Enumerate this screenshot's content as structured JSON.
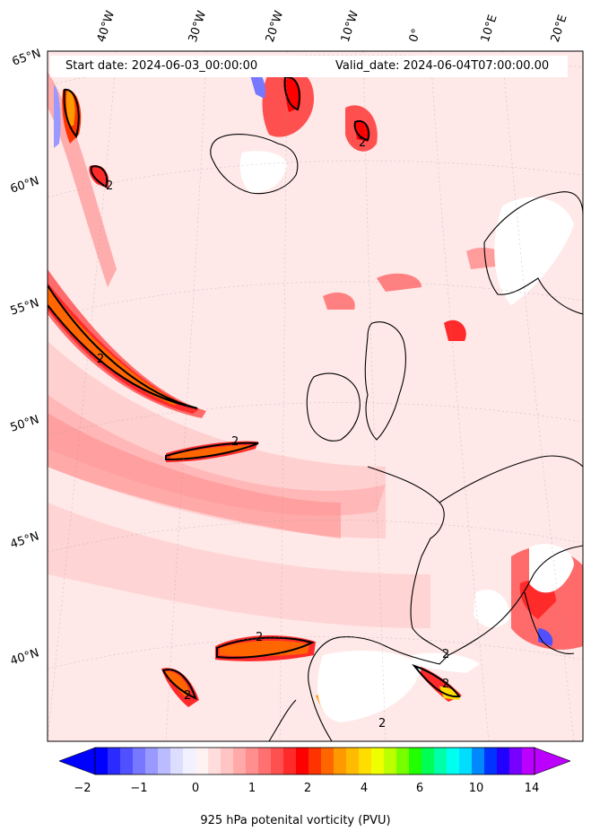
{
  "header": {
    "start_date": "Start date: 2024-06-03_00:00:00",
    "valid_date": "Valid_date: 2024-06-04T07:00:00.00"
  },
  "longitude_labels": [
    "40°W",
    "30°W",
    "20°W",
    "10°W",
    "0°",
    "10°E",
    "20°E"
  ],
  "latitude_labels": [
    "65°N",
    "60°N",
    "55°N",
    "50°N",
    "45°N",
    "40°N"
  ],
  "contour_labels": [
    "2",
    "2",
    "2",
    "2",
    "2",
    "2",
    "2",
    "2",
    "2"
  ],
  "colorbar": {
    "tick_labels": [
      "−2",
      "−1",
      "0",
      "1",
      "2",
      "4",
      "6",
      "10",
      "14"
    ],
    "title": "925 hPa potenital vorticity (PVU)",
    "colors": [
      "#0000ff",
      "#2b2bff",
      "#5050ff",
      "#7777ff",
      "#9999ff",
      "#bbbbff",
      "#ddddff",
      "#f1f1ff",
      "#fff2f2",
      "#ffdddd",
      "#ffc4c4",
      "#ffa9a9",
      "#ff8e8e",
      "#ff7070",
      "#ff5050",
      "#ff2a2a",
      "#ff0000",
      "#ff3300",
      "#ff6600",
      "#ff9900",
      "#ffbb00",
      "#ffdd00",
      "#eeff00",
      "#bbff00",
      "#77ff00",
      "#22ff00",
      "#00ff55",
      "#00ffaa",
      "#00ffee",
      "#00ddff",
      "#0088ff",
      "#0033ff",
      "#2200ff",
      "#7700ff",
      "#bb00ff"
    ]
  }
}
